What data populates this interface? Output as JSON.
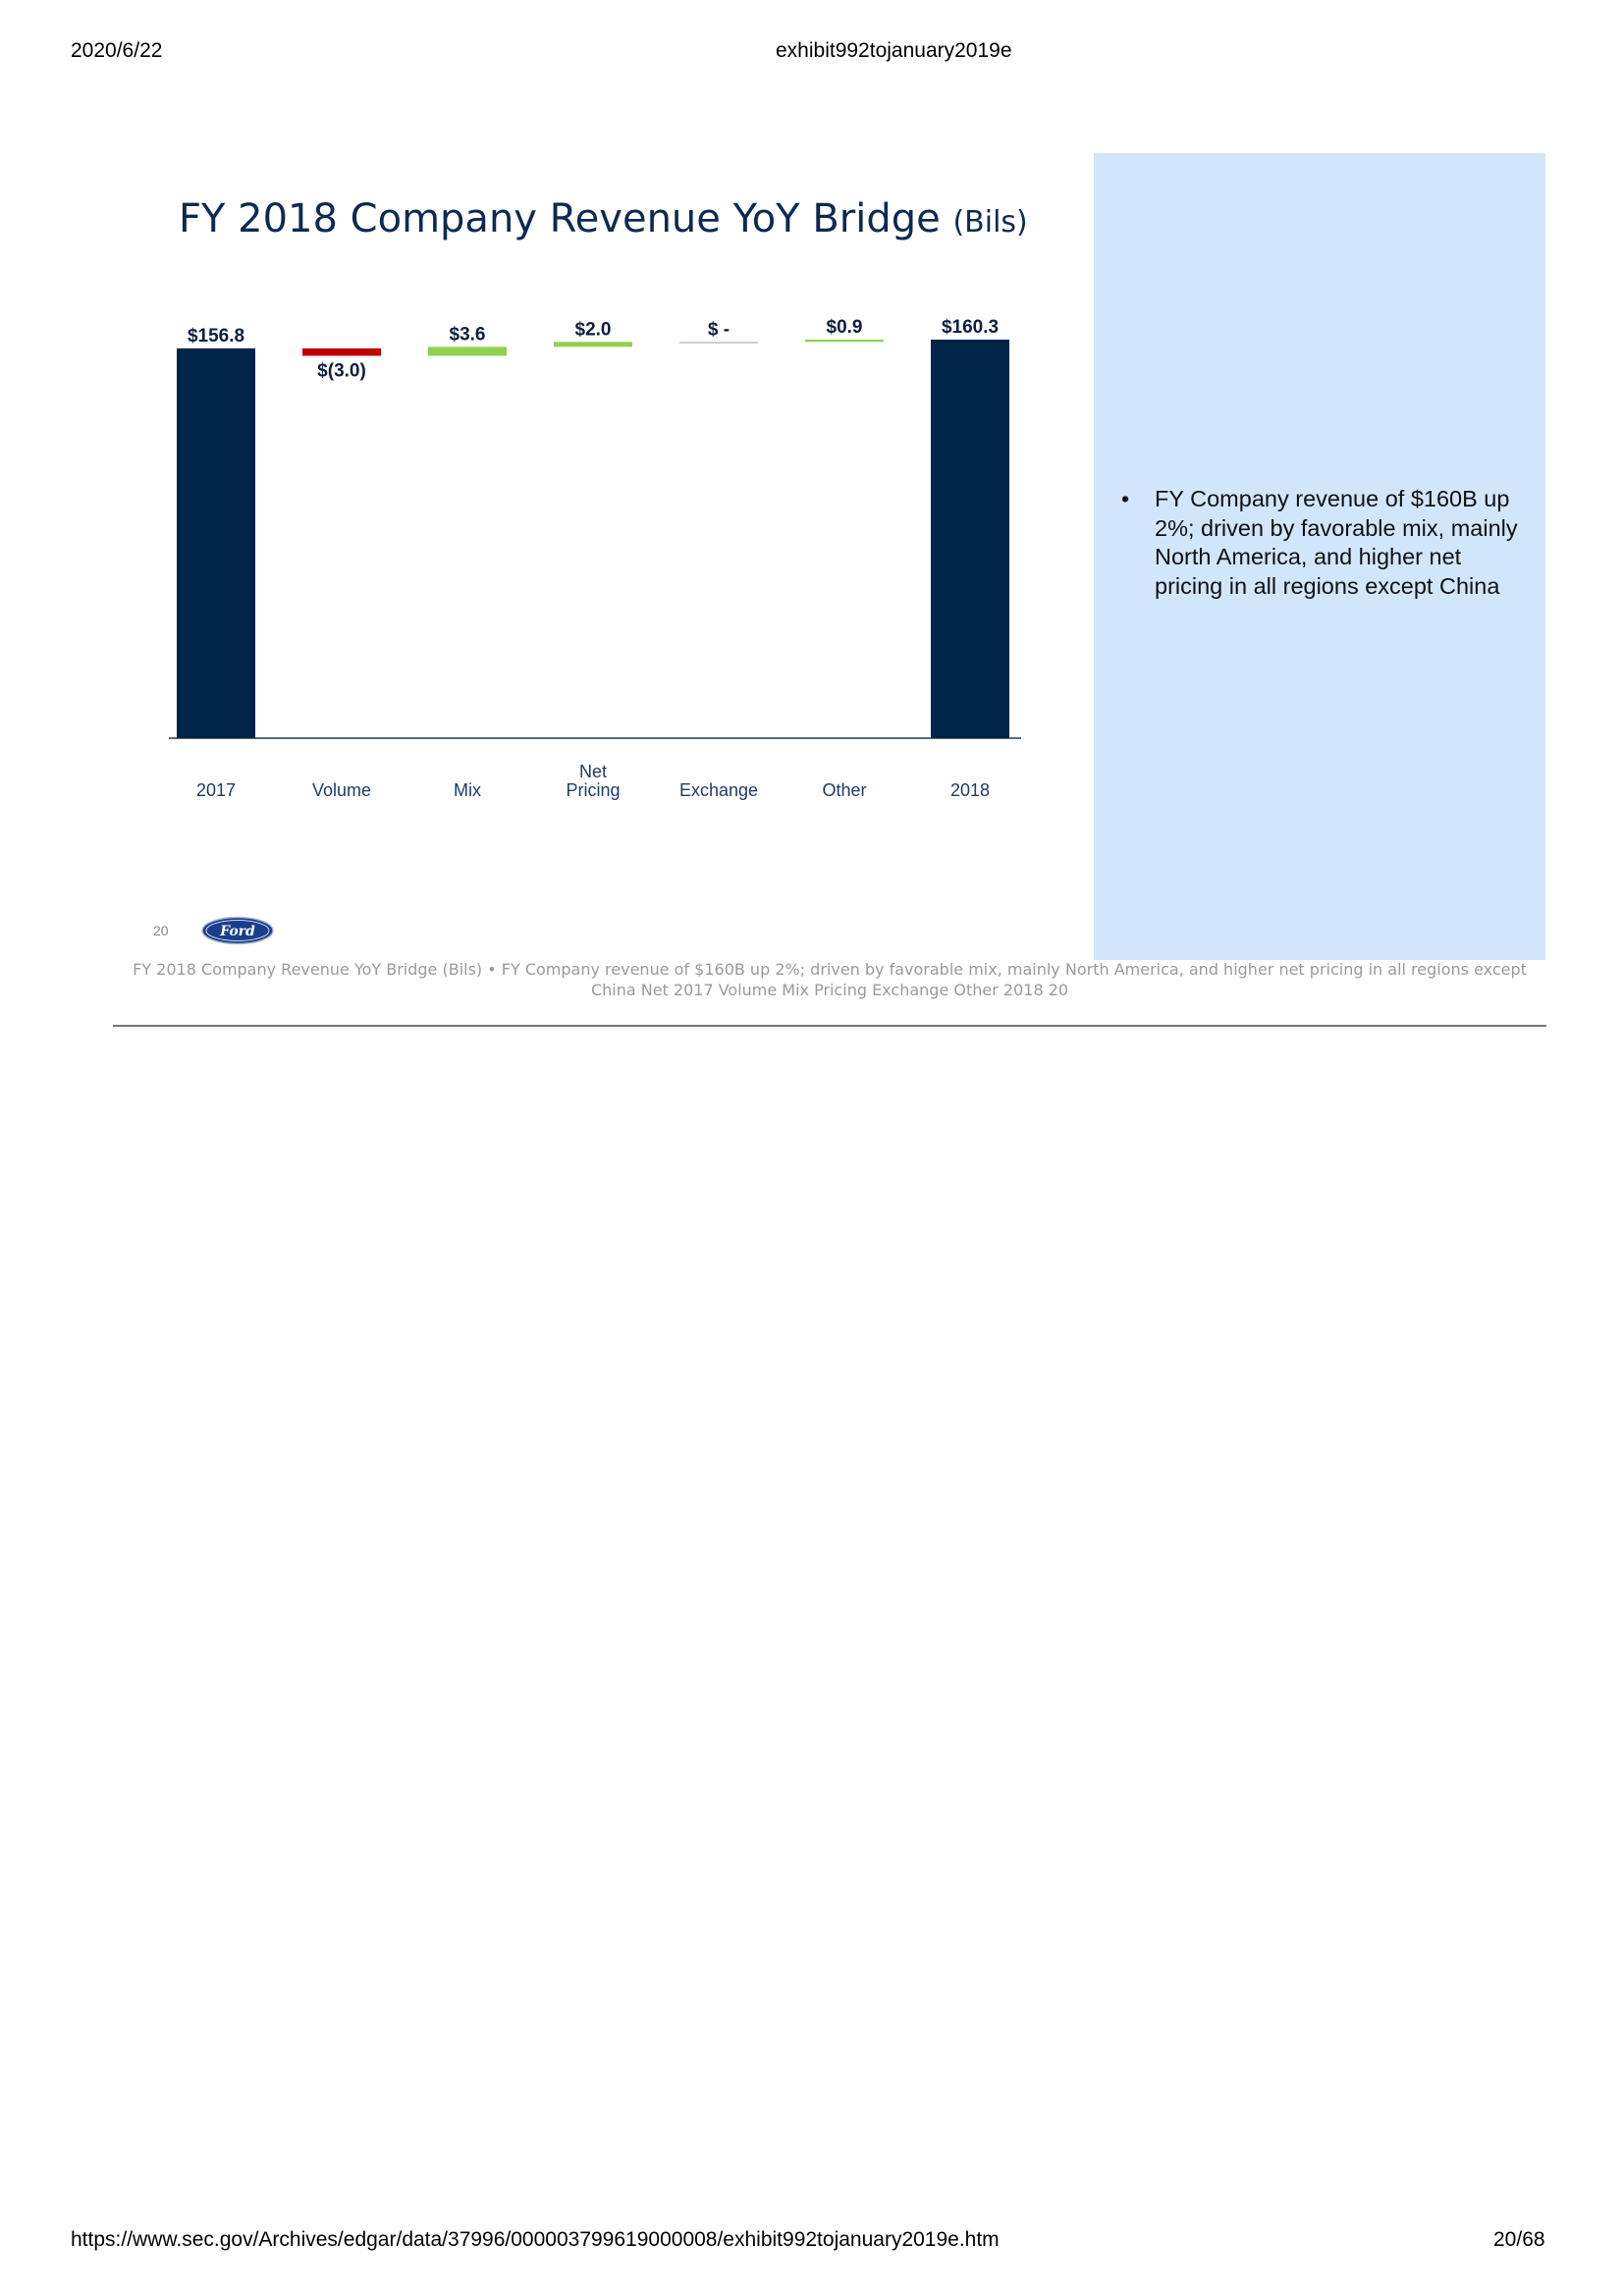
{
  "browser_header": {
    "date": "2020/6/22",
    "doc_title": "exhibit992tojanuary2019e"
  },
  "browser_footer": {
    "url": "https://www.sec.gov/Archives/edgar/data/37996/000003799619000008/exhibit992tojanuary2019e.htm",
    "page": "20/68"
  },
  "slide": {
    "title": "FY 2018 Company Revenue YoY Bridge",
    "title_unit": "(Bils)",
    "bullet": "FY Company revenue of $160B up 2%; driven by favorable mix, mainly North America, and higher net pricing in all regions except China",
    "page_number": "20",
    "logo_text": "Ford"
  },
  "chart_data": {
    "type": "bar",
    "subtype": "waterfall",
    "title": "FY 2018 Company Revenue YoY Bridge (Bils)",
    "categories": [
      "2017",
      "Volume",
      "Mix",
      "Net Pricing",
      "Exchange",
      "Other",
      "2018"
    ],
    "category_lines": [
      [
        "2017"
      ],
      [
        "Volume"
      ],
      [
        "Mix"
      ],
      [
        "Net",
        "Pricing"
      ],
      [
        "Exchange"
      ],
      [
        "Other"
      ],
      [
        "2018"
      ]
    ],
    "values": [
      156.8,
      -3.0,
      3.6,
      2.0,
      0.0,
      0.9,
      160.3
    ],
    "kinds": [
      "total",
      "delta",
      "delta",
      "delta",
      "delta",
      "delta",
      "total"
    ],
    "value_labels": [
      "$156.8",
      "$(3.0)",
      "$3.6",
      "$2.0",
      "$ -",
      "$0.9",
      "$160.3"
    ],
    "colors": {
      "total": "#012449",
      "increase": "#92d050",
      "decrease": "#c00000",
      "zero": "#bfbfbf"
    }
  },
  "caption": "FY 2018 Company Revenue YoY Bridge (Bils) • FY Company revenue of $160B up 2%; driven by favorable mix, mainly North America, and higher net pricing in all regions except China Net 2017 Volume Mix Pricing Exchange Other 2018 20"
}
